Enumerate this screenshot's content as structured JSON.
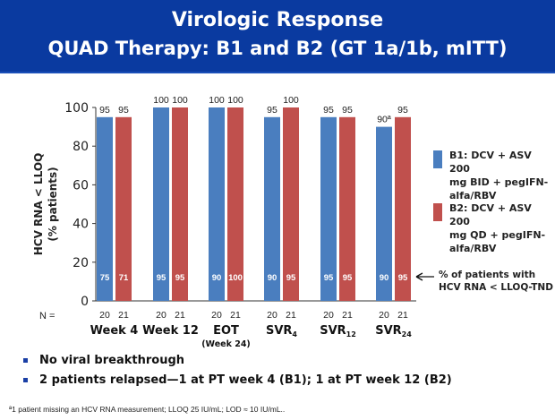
{
  "header": {
    "title_line1": "Virologic Response",
    "title_line2": "QUAD Therapy: B1 and B2 (GT 1a/1b, mITT)"
  },
  "chart_data": {
    "type": "bar",
    "title": "",
    "ylabel_line1": "HCV RNA < LLOQ",
    "ylabel_line2": "(% patients)",
    "xlabel": "",
    "ylim": [
      0,
      100
    ],
    "yticks": [
      0,
      20,
      40,
      60,
      80,
      100
    ],
    "categories": [
      {
        "label": "Week 4",
        "sub": "",
        "subscript": ""
      },
      {
        "label": "Week 12",
        "sub": "",
        "subscript": ""
      },
      {
        "label": "EOT",
        "sub": "(Week 24)",
        "subscript": ""
      },
      {
        "label": "SVR",
        "sub": "",
        "subscript": "4"
      },
      {
        "label": "SVR",
        "sub": "",
        "subscript": "12"
      },
      {
        "label": "SVR",
        "sub": "",
        "subscript": "24"
      }
    ],
    "n_label": "N =",
    "series": [
      {
        "name": "B1: DCV + ASV 200 mg BID + pegIFN-alfa/RBV",
        "color": "#4a7ebf",
        "values": [
          95,
          100,
          100,
          95,
          95,
          90
        ],
        "value_labels": [
          "95",
          "100",
          "100",
          "95",
          "95",
          "90ª"
        ],
        "tnd_values": [
          "75",
          "95",
          "90",
          "90",
          "95",
          "90"
        ],
        "n": [
          "20",
          "20",
          "20",
          "20",
          "20",
          "20"
        ]
      },
      {
        "name": "B2: DCV + ASV 200 mg QD + pegIFN-alfa/RBV",
        "color": "#c0504d",
        "values": [
          95,
          100,
          100,
          100,
          95,
          95
        ],
        "value_labels": [
          "95",
          "100",
          "100",
          "100",
          "95",
          "95"
        ],
        "tnd_values": [
          "71",
          "95",
          "100",
          "95",
          "95",
          "95"
        ],
        "n": [
          "21",
          "21",
          "21",
          "21",
          "21",
          "21"
        ]
      }
    ],
    "legend": {
      "b1_line1": "B1: DCV + ASV 200",
      "b1_line2": "mg BID + pegIFN-",
      "b1_line3": "alfa/RBV",
      "b2_line1": "B2: DCV + ASV 200",
      "b2_line2": "mg QD + pegIFN-",
      "b2_line3": "alfa/RBV",
      "placement": "right"
    },
    "annotation": {
      "line1": "% of patients  with",
      "line2": "HCV RNA < LLOQ-TND"
    }
  },
  "bullets": [
    "No viral breakthrough",
    "2 patients relapsed—1 at PT week 4 (B1); 1 at PT week 12 (B2)"
  ],
  "footnote": "ª1 patient missing an HCV RNA measurement; LLOQ 25 IU/mL; LOD ≈ 10 IU/mL.."
}
